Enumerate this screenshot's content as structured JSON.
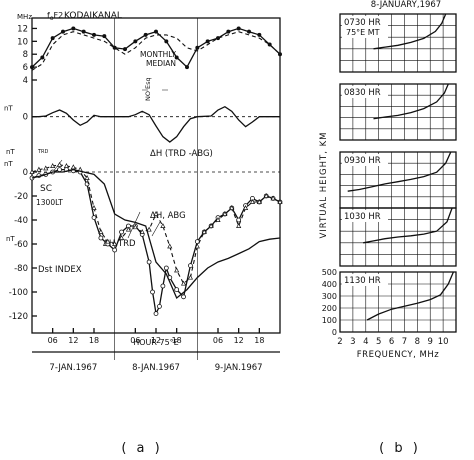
{
  "chart_data": [
    {
      "type": "line",
      "panel_label": "( a )",
      "title": "KODAIKANAL",
      "x_unit": "HOUR 75°E",
      "x_ticks": [
        "06",
        "12",
        "18",
        "06",
        "12",
        "18",
        "06",
        "12",
        "18"
      ],
      "day_labels": [
        "7-JAN.1967",
        "8-JAN.1967",
        "9-JAN.1967"
      ],
      "grid": false,
      "subplots": [
        {
          "name": "foF2",
          "ylabel": "fₒF2",
          "unit": "MHz",
          "ylim": [
            4,
            13
          ],
          "yticks": [
            "12",
            "10",
            "8",
            "6",
            "4"
          ],
          "annotations": [
            "MONTHLY MEDIAN",
            "NO Esq"
          ],
          "series": [
            {
              "name": "",
              "style": "solid-dots",
              "x": [
                0,
                3,
                6,
                9,
                12,
                15,
                18,
                21,
                24,
                27,
                30,
                33,
                36,
                39,
                42,
                45,
                48,
                51,
                54,
                57,
                60,
                63,
                66,
                69,
                72
              ],
              "values": [
                6,
                7.5,
                10.5,
                11.5,
                12,
                11.5,
                11,
                10.8,
                9,
                8.8,
                10,
                11,
                11.5,
                10,
                7.5,
                6,
                9,
                10,
                10.5,
                11.5,
                12,
                11.5,
                11,
                9.5,
                8
              ]
            },
            {
              "name": "MONTHLY MEDIAN",
              "style": "dashed",
              "x": [
                0,
                3,
                6,
                9,
                12,
                15,
                18,
                21,
                24,
                27,
                30,
                33,
                36,
                39,
                42,
                45,
                48,
                51,
                54,
                57,
                60,
                63,
                66,
                69,
                72
              ],
              "values": [
                5.5,
                6.5,
                9.5,
                11,
                11.5,
                11,
                10.5,
                10,
                9,
                8,
                9,
                10.5,
                11,
                11,
                10.5,
                9,
                8.5,
                9.5,
                10.5,
                11,
                11.5,
                11,
                10.5,
                9.5,
                8
              ]
            }
          ]
        },
        {
          "name": "Esq",
          "ylabel": "",
          "unit": "nT",
          "ylim": [
            -5,
            1
          ],
          "yticks": [
            "0"
          ],
          "annotations": [
            "ΔH (TRD -ABG)"
          ],
          "series": [
            {
              "name": "ΔH (TRD -ABG)",
              "style": "solid",
              "x": [
                0,
                2,
                4,
                6,
                8,
                10,
                12,
                14,
                16,
                18,
                20,
                24,
                28,
                30,
                32,
                34,
                36,
                38,
                40,
                42,
                44,
                46,
                48,
                52,
                54,
                56,
                58,
                60,
                62,
                64,
                66,
                68,
                72
              ],
              "values": [
                0,
                0,
                0.1,
                0.6,
                1,
                0.5,
                -0.5,
                -1.3,
                -0.8,
                0.2,
                0,
                0,
                0,
                0.3,
                0.8,
                0.3,
                -1.4,
                -3,
                -3.8,
                -3,
                -1.5,
                -0.3,
                0,
                0.1,
                1,
                1.5,
                0.8,
                -0.5,
                -1.5,
                -0.8,
                0,
                0,
                0
              ]
            }
          ]
        },
        {
          "name": "ΔH",
          "ylabel": "",
          "unit": "nT",
          "ylim": [
            -130,
            10
          ],
          "yticks": [
            "0",
            "-20",
            "-40",
            "-60",
            "-80",
            "-100",
            "-120"
          ],
          "annotations": [
            "SC",
            "1300LT",
            "ΔH,TRD",
            "ΔH, ABG",
            "Dst INDEX"
          ],
          "series": [
            {
              "name": "ΔH,TRD",
              "style": "solid-circles",
              "x": [
                0,
                2,
                4,
                6,
                8,
                10,
                12,
                14,
                16,
                18,
                20,
                22,
                24,
                26,
                28,
                30,
                32,
                34,
                35,
                36,
                37,
                38,
                39,
                40,
                42,
                44,
                46,
                48,
                50,
                52,
                54,
                56,
                58,
                60,
                62,
                64,
                66,
                68,
                70,
                72
              ],
              "values": [
                -5,
                -3,
                -2,
                0,
                2,
                2,
                1,
                0,
                -10,
                -38,
                -55,
                -60,
                -65,
                -50,
                -45,
                -45,
                -52,
                -75,
                -100,
                -118,
                -112,
                -95,
                -80,
                -88,
                -98,
                -104,
                -78,
                -58,
                -50,
                -45,
                -38,
                -35,
                -30,
                -40,
                -28,
                -22,
                -25,
                -20,
                -22,
                -25
              ]
            },
            {
              "name": "ΔH, ABG",
              "style": "dashed-triangles",
              "x": [
                0,
                2,
                4,
                6,
                8,
                10,
                12,
                14,
                16,
                18,
                20,
                22,
                24,
                26,
                28,
                30,
                32,
                34,
                36,
                38,
                40,
                42,
                44,
                46,
                48,
                50,
                52,
                54,
                56,
                58,
                60,
                62,
                64,
                66,
                68,
                70,
                72
              ],
              "values": [
                0,
                2,
                3,
                5,
                6,
                5,
                4,
                2,
                -5,
                -30,
                -50,
                -58,
                -60,
                -55,
                -48,
                -46,
                -50,
                -48,
                -35,
                -45,
                -62,
                -82,
                -93,
                -88,
                -62,
                -50,
                -45,
                -40,
                -35,
                -30,
                -45,
                -30,
                -25,
                -25,
                -20,
                -22,
                -25
              ]
            },
            {
              "name": "Dst INDEX",
              "style": "solid",
              "x": [
                0,
                3,
                6,
                9,
                12,
                15,
                18,
                21,
                24,
                27,
                30,
                33,
                36,
                39,
                42,
                45,
                48,
                51,
                54,
                57,
                60,
                63,
                66,
                69,
                72
              ],
              "values": [
                -5,
                -3,
                0,
                0,
                2,
                0,
                -2,
                -10,
                -35,
                -40,
                -42,
                -45,
                -75,
                -85,
                -105,
                -98,
                -88,
                -80,
                -75,
                -72,
                -68,
                -64,
                -58,
                -56,
                -55
              ]
            }
          ]
        }
      ]
    },
    {
      "type": "line",
      "panel_label": "( b )",
      "title": "8-JANUARY,1967",
      "xlabel": "FREQUENCY, MHz",
      "ylabel": "VIRTUAL HEIGHT, KM",
      "xlim": [
        2,
        11
      ],
      "x_ticks": [
        "2",
        "3",
        "4",
        "5",
        "6",
        "7",
        "8",
        "9",
        "10"
      ],
      "ylim": [
        0,
        500
      ],
      "y_ticks": [
        "500",
        "400",
        "300",
        "200",
        "100",
        "0"
      ],
      "grid": true,
      "ionograms": [
        {
          "label": "0730 HR",
          "sublabel": "75°E MT",
          "x": [
            4.6,
            5.5,
            6.5,
            7.5,
            8.5,
            9.4,
            9.9,
            10.2
          ],
          "values": [
            200,
            215,
            230,
            255,
            290,
            350,
            420,
            500
          ]
        },
        {
          "label": "0830 HR",
          "sublabel": "",
          "x": [
            4.6,
            5.5,
            6.5,
            7.5,
            8.5,
            9.5,
            10.1,
            10.4
          ],
          "values": [
            190,
            205,
            220,
            245,
            280,
            340,
            420,
            500
          ]
        },
        {
          "label": "0930 HR",
          "sublabel": "",
          "x": [
            2.6,
            3.5,
            4.5,
            5.5,
            6.5,
            7.5,
            8.5,
            9.5,
            10.2,
            10.6
          ],
          "values": [
            150,
            165,
            190,
            215,
            235,
            255,
            280,
            320,
            400,
            500
          ]
        },
        {
          "label": "1030 HR",
          "sublabel": "",
          "x": [
            3.8,
            4.5,
            5.5,
            6.5,
            7.5,
            8.5,
            9.5,
            10.3,
            10.7
          ],
          "values": [
            200,
            215,
            235,
            250,
            260,
            275,
            300,
            380,
            500
          ]
        },
        {
          "label": "1130 HR",
          "sublabel": "",
          "x": [
            4.1,
            5,
            6,
            7,
            8,
            9,
            9.8,
            10.4,
            10.8
          ],
          "values": [
            100,
            150,
            190,
            215,
            240,
            270,
            310,
            400,
            500
          ]
        }
      ]
    }
  ]
}
